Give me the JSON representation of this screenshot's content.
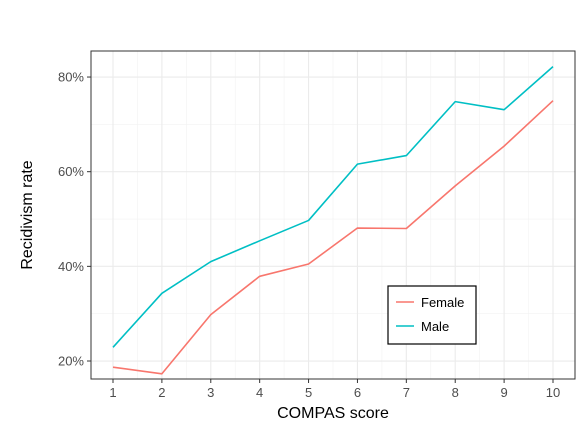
{
  "chart_data": {
    "type": "line",
    "xlabel": "COMPAS score",
    "ylabel": "Recidivism rate",
    "x": [
      1,
      2,
      3,
      4,
      5,
      6,
      7,
      8,
      9,
      10
    ],
    "x_ticks": [
      "1",
      "2",
      "3",
      "4",
      "5",
      "6",
      "7",
      "8",
      "9",
      "10"
    ],
    "y_ticks": [
      0.2,
      0.4,
      0.6,
      0.8
    ],
    "y_tick_labels": [
      "20%",
      "40%",
      "60%",
      "80%"
    ],
    "xlim": [
      0.55,
      10.45
    ],
    "ylim": [
      0.162,
      0.855
    ],
    "grid": true,
    "legend_position": "bottom-right",
    "series": [
      {
        "name": "Female",
        "color": "#F8766D",
        "values": [
          0.187,
          0.173,
          0.298,
          0.379,
          0.405,
          0.481,
          0.48,
          0.57,
          0.654,
          0.75
        ]
      },
      {
        "name": "Male",
        "color": "#00BFC4",
        "values": [
          0.229,
          0.343,
          0.41,
          0.454,
          0.497,
          0.616,
          0.634,
          0.748,
          0.731,
          0.822
        ]
      }
    ]
  }
}
